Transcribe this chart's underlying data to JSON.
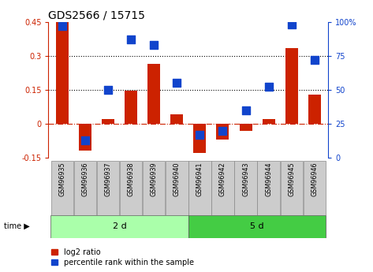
{
  "title": "GDS2566 / 15715",
  "samples": [
    "GSM96935",
    "GSM96936",
    "GSM96937",
    "GSM96938",
    "GSM96939",
    "GSM96940",
    "GSM96941",
    "GSM96942",
    "GSM96943",
    "GSM96944",
    "GSM96945",
    "GSM96946"
  ],
  "log2_ratio": [
    0.45,
    -0.12,
    0.02,
    0.145,
    0.265,
    0.04,
    -0.13,
    -0.07,
    -0.03,
    0.02,
    0.335,
    0.13
  ],
  "percentile_rank": [
    97,
    13,
    50,
    87,
    83,
    55,
    17,
    20,
    35,
    52,
    98,
    72
  ],
  "group1_label": "2 d",
  "group2_label": "5 d",
  "group1_count": 6,
  "group2_count": 6,
  "legend1": "log2 ratio",
  "legend2": "percentile rank within the sample",
  "bar_color": "#cc2200",
  "dot_color": "#1144cc",
  "ylim_left": [
    -0.15,
    0.45
  ],
  "ylim_right": [
    0,
    100
  ],
  "yticks_left": [
    -0.15,
    0,
    0.15,
    0.3,
    0.45
  ],
  "ytick_labels_left": [
    "-0.15",
    "0",
    "0.15",
    "0.3",
    "0.45"
  ],
  "yticks_right": [
    0,
    25,
    50,
    75,
    100
  ],
  "ytick_labels_right": [
    "0",
    "25",
    "50",
    "75",
    "100%"
  ],
  "hline_y": [
    0.15,
    0.3
  ],
  "zero_line_y": 0,
  "group1_color": "#aaffaa",
  "group2_color": "#44cc44",
  "sample_box_color": "#cccccc",
  "bar_width": 0.55,
  "dot_size": 45,
  "title_fontsize": 10,
  "tick_fontsize": 7,
  "sample_fontsize": 5.8,
  "group_fontsize": 8,
  "legend_fontsize": 7
}
